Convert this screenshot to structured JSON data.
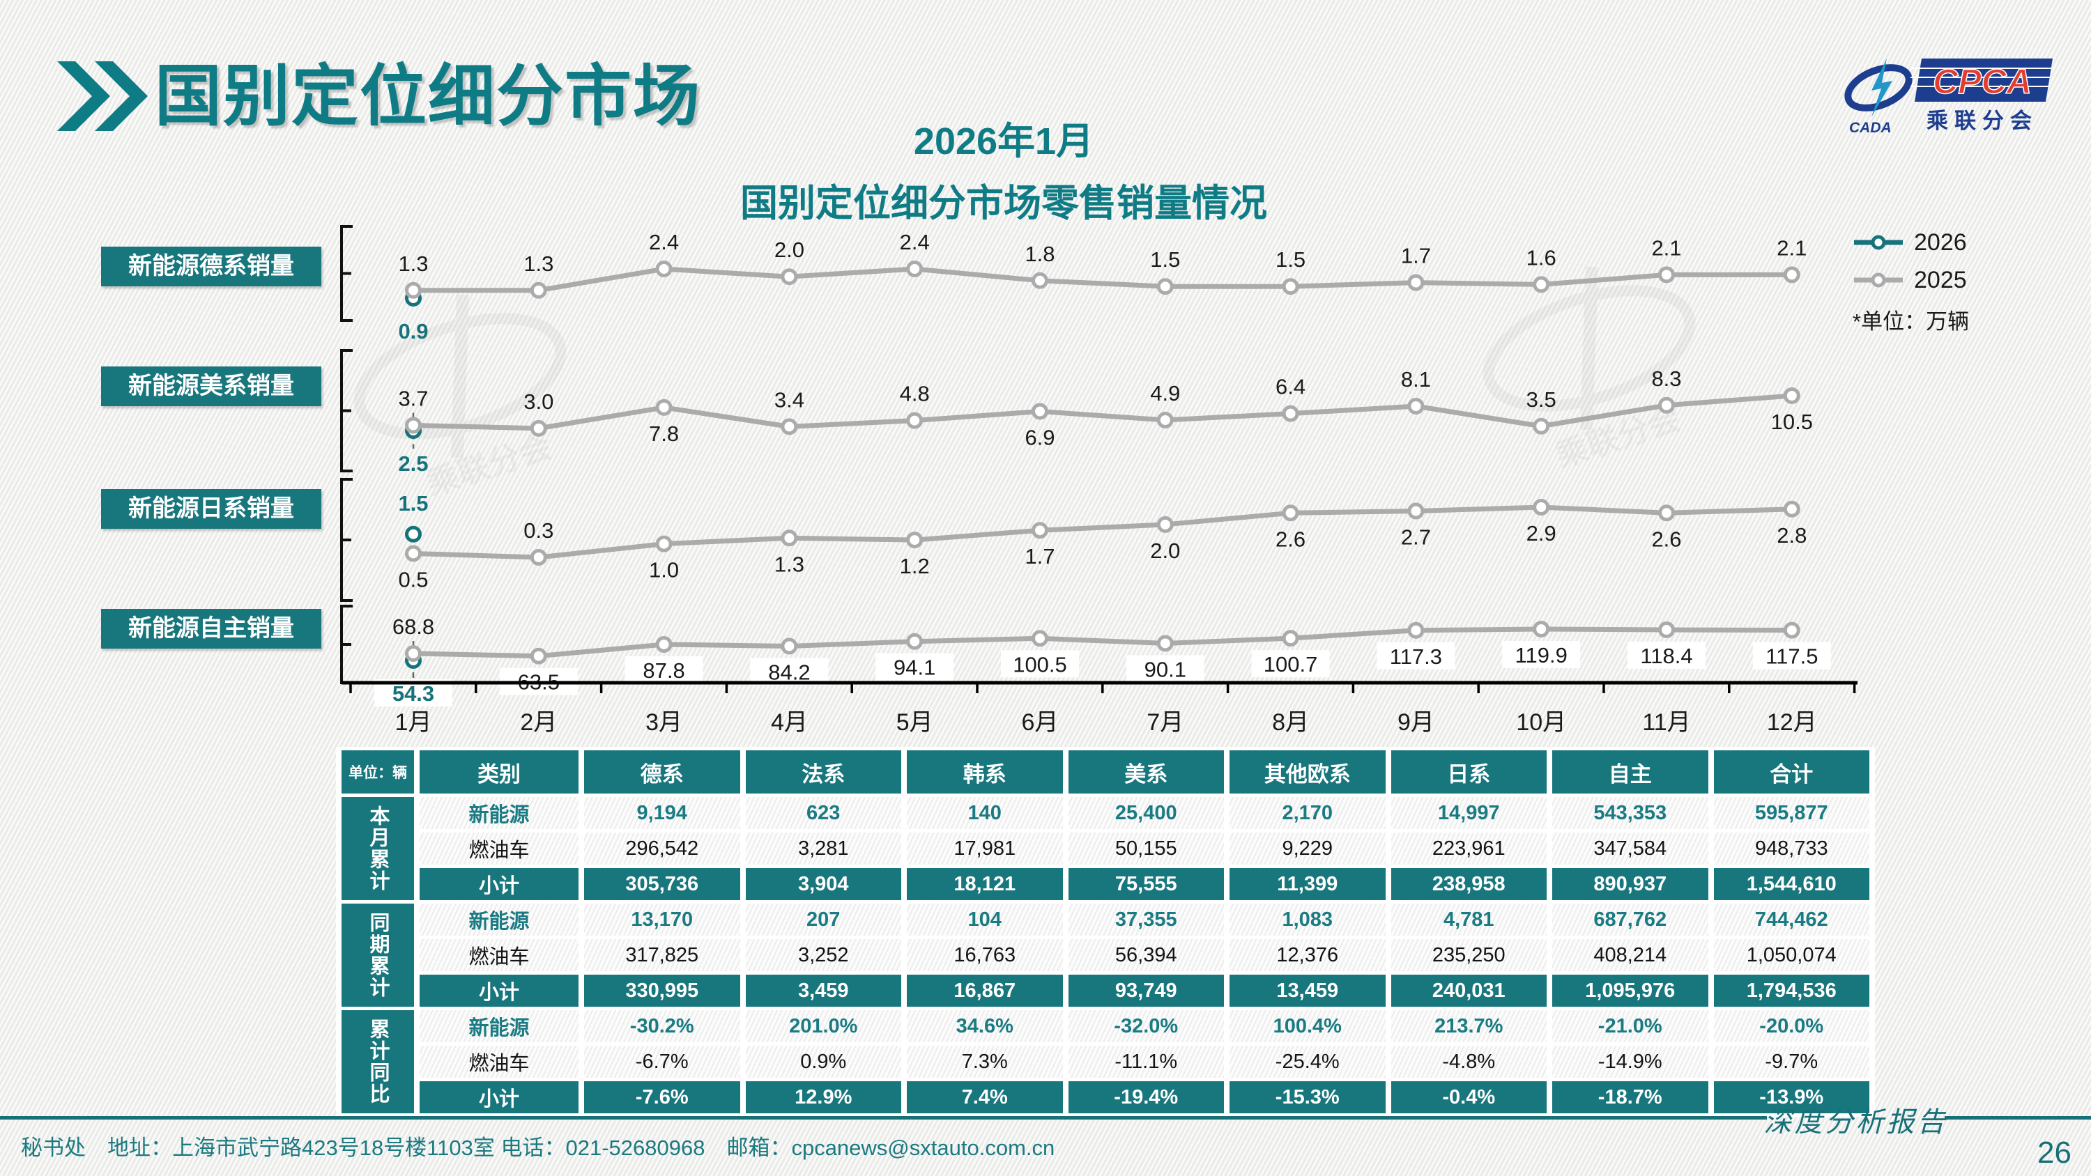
{
  "page": {
    "title": "国别定位细分市场",
    "subtitle_line1": "2026年1月",
    "subtitle_line2": "国别定位细分市场零售销量情况",
    "footer_text": "秘书处　地址：上海市武宁路423号18号楼1103室 电话：021-52680968　邮箱：cpcanews@sxtauto.com.cn",
    "report_label": "深度分析报告",
    "page_number": "26"
  },
  "logo": {
    "cada_text": "CADA",
    "cpca_text": "CPCA",
    "cpca_sub": "乘联分会"
  },
  "legend": {
    "items": [
      {
        "name": "2026",
        "color": "#17737b"
      },
      {
        "name": "2025",
        "color": "#ababab"
      }
    ],
    "unit_note": "*单位：万辆",
    "position": "top-right"
  },
  "months": [
    "1月",
    "2月",
    "3月",
    "4月",
    "5月",
    "6月",
    "7月",
    "8月",
    "9月",
    "10月",
    "11月",
    "12月"
  ],
  "chart_data": [
    {
      "type": "line",
      "title": "新能源德系销量",
      "unit": "万辆",
      "categories": [
        "1月",
        "2月",
        "3月",
        "4月",
        "5月",
        "6月",
        "7月",
        "8月",
        "9月",
        "10月",
        "11月",
        "12月"
      ],
      "series": [
        {
          "name": "2026",
          "color": "#17737b",
          "values": [
            0.9
          ],
          "label_side": [
            "below"
          ]
        },
        {
          "name": "2025",
          "color": "#ababab",
          "values": [
            1.3,
            1.3,
            2.4,
            2.0,
            2.4,
            1.8,
            1.5,
            1.5,
            1.7,
            1.6,
            2.1,
            2.1
          ],
          "label_side": [
            "above",
            "above",
            "above",
            "above",
            "above",
            "above",
            "above",
            "above",
            "above",
            "above",
            "above",
            "above"
          ]
        }
      ]
    },
    {
      "type": "line",
      "title": "新能源美系销量",
      "unit": "万辆",
      "categories": [
        "1月",
        "2月",
        "3月",
        "4月",
        "5月",
        "6月",
        "7月",
        "8月",
        "9月",
        "10月",
        "11月",
        "12月"
      ],
      "series": [
        {
          "name": "2026",
          "color": "#17737b",
          "values": [
            2.5
          ],
          "label_side": [
            "below"
          ]
        },
        {
          "name": "2025",
          "color": "#ababab",
          "values": [
            3.7,
            3.0,
            7.8,
            3.4,
            4.8,
            6.9,
            4.9,
            6.4,
            8.1,
            3.5,
            8.3,
            10.5
          ],
          "label_side": [
            "above",
            "above",
            "below",
            "above",
            "above",
            "below",
            "above",
            "above",
            "above",
            "above",
            "above",
            "below"
          ]
        }
      ]
    },
    {
      "type": "line",
      "title": "新能源日系销量",
      "unit": "万辆",
      "categories": [
        "1月",
        "2月",
        "3月",
        "4月",
        "5月",
        "6月",
        "7月",
        "8月",
        "9月",
        "10月",
        "11月",
        "12月"
      ],
      "series": [
        {
          "name": "2026",
          "color": "#17737b",
          "values": [
            1.5
          ],
          "label_side": [
            "above"
          ]
        },
        {
          "name": "2025",
          "color": "#ababab",
          "values": [
            0.5,
            0.3,
            1.0,
            1.3,
            1.2,
            1.7,
            2.0,
            2.6,
            2.7,
            2.9,
            2.6,
            2.8
          ],
          "label_side": [
            "below",
            "above",
            "below",
            "below",
            "below",
            "below",
            "below",
            "below",
            "below",
            "below",
            "below",
            "below"
          ]
        }
      ]
    },
    {
      "type": "line",
      "title": "新能源自主销量",
      "unit": "万辆",
      "categories": [
        "1月",
        "2月",
        "3月",
        "4月",
        "5月",
        "6月",
        "7月",
        "8月",
        "9月",
        "10月",
        "11月",
        "12月"
      ],
      "series": [
        {
          "name": "2026",
          "color": "#17737b",
          "values": [
            54.3
          ],
          "label_side": [
            "below"
          ]
        },
        {
          "name": "2025",
          "color": "#ababab",
          "values": [
            68.8,
            63.5,
            87.8,
            84.2,
            94.1,
            100.5,
            90.1,
            100.7,
            117.3,
            119.9,
            118.4,
            117.5
          ],
          "label_side": [
            "above",
            "below",
            "below",
            "below",
            "below",
            "below",
            "below",
            "below",
            "below",
            "below",
            "below",
            "below"
          ]
        }
      ]
    }
  ],
  "table": {
    "unit_label": "单位：辆",
    "col_headers": [
      "类别",
      "德系",
      "法系",
      "韩系",
      "美系",
      "其他欧系",
      "日系",
      "自主",
      "合计"
    ],
    "groups": [
      {
        "name": "本月累计",
        "rows": [
          {
            "label": "新能源",
            "style": "nev",
            "cells": [
              "9,194",
              "623",
              "140",
              "25,400",
              "2,170",
              "14,997",
              "543,353",
              "595,877"
            ]
          },
          {
            "label": "燃油车",
            "style": "ice",
            "cells": [
              "296,542",
              "3,281",
              "17,981",
              "50,155",
              "9,229",
              "223,961",
              "347,584",
              "948,733"
            ]
          },
          {
            "label": "小计",
            "style": "sub",
            "cells": [
              "305,736",
              "3,904",
              "18,121",
              "75,555",
              "11,399",
              "238,958",
              "890,937",
              "1,544,610"
            ]
          }
        ]
      },
      {
        "name": "同期累计",
        "rows": [
          {
            "label": "新能源",
            "style": "nev",
            "cells": [
              "13,170",
              "207",
              "104",
              "37,355",
              "1,083",
              "4,781",
              "687,762",
              "744,462"
            ]
          },
          {
            "label": "燃油车",
            "style": "ice",
            "cells": [
              "317,825",
              "3,252",
              "16,763",
              "56,394",
              "12,376",
              "235,250",
              "408,214",
              "1,050,074"
            ]
          },
          {
            "label": "小计",
            "style": "sub",
            "cells": [
              "330,995",
              "3,459",
              "16,867",
              "93,749",
              "13,459",
              "240,031",
              "1,095,976",
              "1,794,536"
            ]
          }
        ]
      },
      {
        "name": "累计同比",
        "rows": [
          {
            "label": "新能源",
            "style": "nev",
            "cells": [
              "-30.2%",
              "201.0%",
              "34.6%",
              "-32.0%",
              "100.4%",
              "213.7%",
              "-21.0%",
              "-20.0%"
            ]
          },
          {
            "label": "燃油车",
            "style": "ice",
            "cells": [
              "-6.7%",
              "0.9%",
              "7.3%",
              "-11.1%",
              "-25.4%",
              "-4.8%",
              "-14.9%",
              "-9.7%"
            ]
          },
          {
            "label": "小计",
            "style": "sub",
            "cells": [
              "-7.6%",
              "12.9%",
              "7.4%",
              "-19.4%",
              "-15.3%",
              "-0.4%",
              "-18.7%",
              "-13.9%"
            ]
          }
        ]
      }
    ]
  }
}
